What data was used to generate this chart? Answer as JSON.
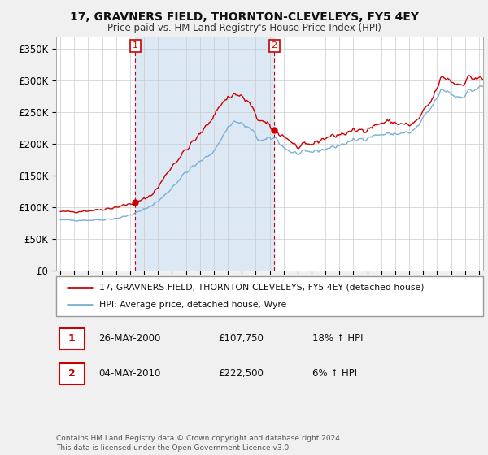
{
  "title": "17, GRAVNERS FIELD, THORNTON-CLEVELEYS, FY5 4EY",
  "subtitle": "Price paid vs. HM Land Registry's House Price Index (HPI)",
  "ylabel_ticks": [
    "£0",
    "£50K",
    "£100K",
    "£150K",
    "£200K",
    "£250K",
    "£300K",
    "£350K"
  ],
  "ytick_values": [
    0,
    50000,
    100000,
    150000,
    200000,
    250000,
    300000,
    350000
  ],
  "ylim": [
    0,
    370000
  ],
  "xlim_start": 1994.7,
  "xlim_end": 2025.3,
  "red_color": "#cc0000",
  "blue_color": "#7ab0d4",
  "shade_color": "#dce9f5",
  "sale1_year": 2000.38,
  "sale1_price": 107750,
  "sale2_year": 2010.33,
  "sale2_price": 222500,
  "legend_line1": "17, GRAVNERS FIELD, THORNTON-CLEVELEYS, FY5 4EY (detached house)",
  "legend_line2": "HPI: Average price, detached house, Wyre",
  "annotation1_label": "1",
  "annotation1_date": "26-MAY-2000",
  "annotation1_price": "£107,750",
  "annotation1_hpi": "18% ↑ HPI",
  "annotation2_label": "2",
  "annotation2_date": "04-MAY-2010",
  "annotation2_price": "£222,500",
  "annotation2_hpi": "6% ↑ HPI",
  "footer": "Contains HM Land Registry data © Crown copyright and database right 2024.\nThis data is licensed under the Open Government Licence v3.0.",
  "fig_bg_color": "#f0f0f0",
  "plot_bg_color": "#ffffff",
  "grid_color": "#cccccc"
}
